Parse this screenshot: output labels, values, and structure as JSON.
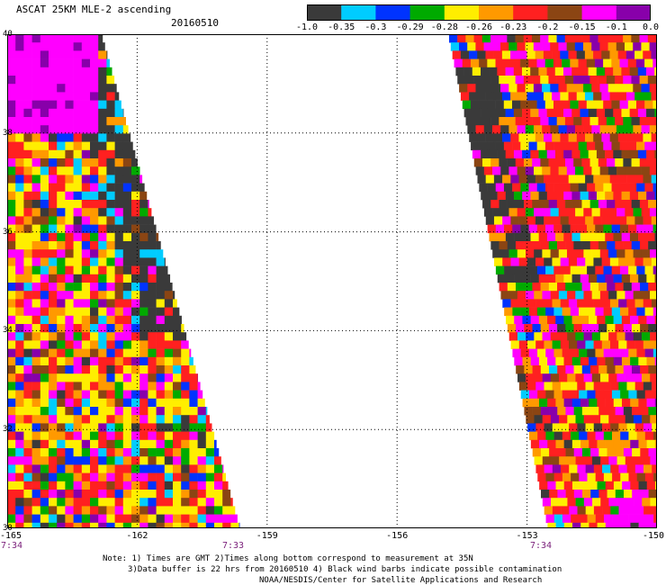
{
  "header": {
    "title": "ASCAT 25KM MLE-2 ascending",
    "date": "20160510"
  },
  "colorbar": {
    "labels": [
      "-1.0",
      "-0.35",
      "-0.3",
      "-0.29",
      "-0.28",
      "-0.26",
      "-0.23",
      "-0.2",
      "-0.15",
      "-0.1",
      "0.0"
    ],
    "colors": [
      "#3a3a3a",
      "#00ccff",
      "#0033ff",
      "#00aa00",
      "#ffee00",
      "#ff9900",
      "#ff2020",
      "#8b4513",
      "#ff00ff",
      "#8800aa"
    ]
  },
  "map": {
    "lon_range": [
      -165,
      -150
    ],
    "lat_range": [
      30,
      40
    ],
    "lat_labels": [
      "40",
      "38",
      "36",
      "34",
      "32",
      "30"
    ],
    "lon_labels": [
      "-165",
      "-162",
      "-159",
      "-156",
      "-153",
      "-150"
    ],
    "time_labels": {
      "left": "7:34",
      "mid": "7:33",
      "right": "7:34"
    },
    "swaths": [
      {
        "name": "left-swath",
        "lon_min": -165,
        "east_edge_top": -162.8,
        "east_edge_bottom": -159.6
      },
      {
        "name": "right-swath",
        "lon_west_top": -154.8,
        "lon_west_bottom": -152.5,
        "lon_max": -150
      }
    ]
  },
  "notes": {
    "line1": "Note: 1) Times are GMT 2)Times along bottom correspond to measurement at 35N",
    "line2": "3)Data buffer is 22 hrs from 20160510 4) Black wind barbs indicate possible contamination",
    "line3": "NOAA/NESDIS/Center for Satellite Applications and Research"
  }
}
